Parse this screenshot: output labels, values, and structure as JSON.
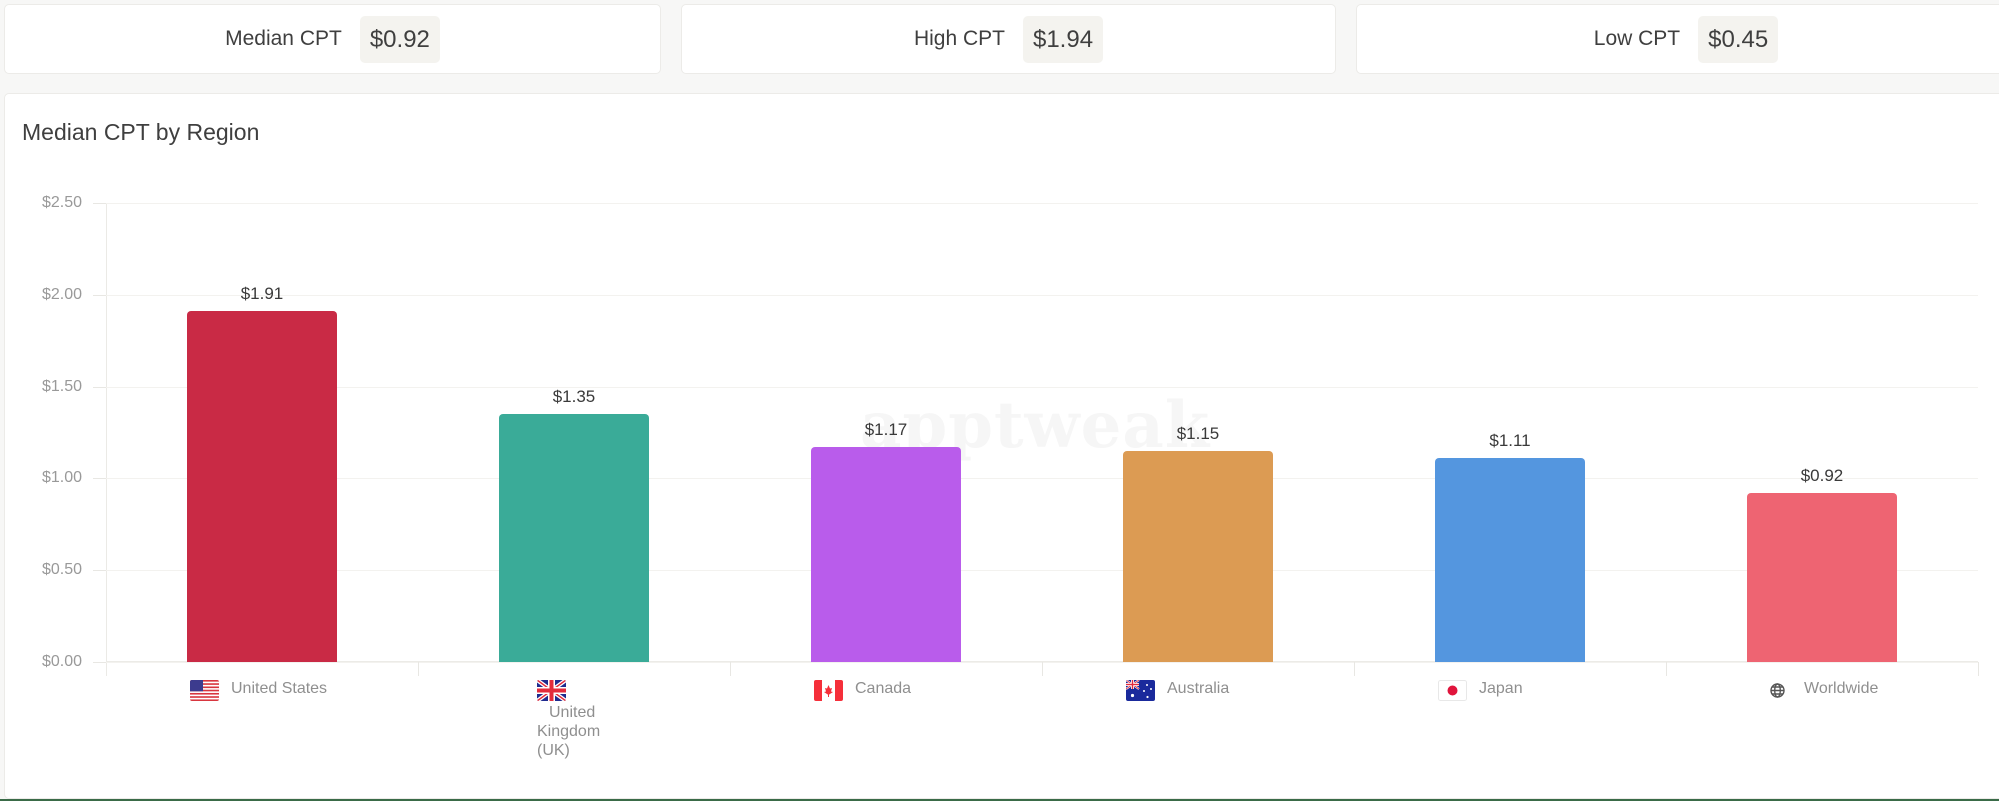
{
  "stats": {
    "median": {
      "label": "Median CPT",
      "value": "$0.92"
    },
    "high": {
      "label": "High CPT",
      "value": "$1.94"
    },
    "low": {
      "label": "Low CPT",
      "value": "$0.45"
    }
  },
  "chart": {
    "title": "Median CPT by Region",
    "watermark": "apptweak"
  },
  "chart_data": {
    "type": "bar",
    "title": "Median CPT by Region",
    "xlabel": "",
    "ylabel": "",
    "ylim": [
      0,
      2.5
    ],
    "yticks": [
      "$0.00",
      "$0.50",
      "$1.00",
      "$1.50",
      "$2.00",
      "$2.50"
    ],
    "grid": true,
    "legend": null,
    "categories": [
      "United States",
      "United Kingdom (UK)",
      "Canada",
      "Australia",
      "Japan",
      "Worldwide"
    ],
    "values": [
      1.91,
      1.35,
      1.17,
      1.15,
      1.11,
      0.92
    ],
    "value_labels": [
      "$1.91",
      "$1.35",
      "$1.17",
      "$1.15",
      "$1.11",
      "$0.92"
    ],
    "colors": [
      "#c92a45",
      "#3aab98",
      "#b95ceb",
      "#dc9b53",
      "#5496df",
      "#ee6472"
    ],
    "category_icons": [
      "flag-us-icon",
      "flag-uk-icon",
      "flag-ca-icon",
      "flag-au-icon",
      "flag-jp-icon",
      "globe-icon"
    ]
  }
}
